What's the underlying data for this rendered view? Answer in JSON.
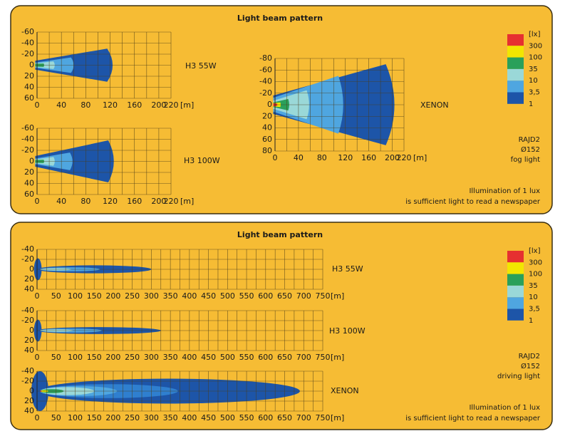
{
  "panels": [
    {
      "title": "Light beam pattern",
      "plots": [
        {
          "label": "H3 55W",
          "xticks": [
            0,
            40,
            80,
            120,
            160,
            200,
            220
          ],
          "unit": "[m]",
          "yticks": [
            -60,
            -40,
            -20,
            0,
            20,
            40,
            60
          ]
        },
        {
          "label": "H3 100W",
          "xticks": [
            0,
            40,
            80,
            120,
            160,
            200,
            220
          ],
          "unit": "[m]",
          "yticks": [
            -60,
            -40,
            -20,
            0,
            20,
            40,
            60
          ]
        },
        {
          "label": "XENON",
          "xticks": [
            0,
            40,
            80,
            120,
            160,
            200,
            220
          ],
          "unit": "[m]",
          "yticks": [
            -80,
            -60,
            -40,
            -20,
            0,
            20,
            40,
            60,
            80
          ]
        }
      ],
      "legend": {
        "unit": "[lx]",
        "levels": [
          "300",
          "100",
          "35",
          "10",
          "3,5",
          "1"
        ]
      },
      "specs": [
        "RAJD2",
        "Ø152",
        "fog light"
      ],
      "note": [
        "Illumination of 1 lux",
        "is sufficient light to read a newspaper"
      ]
    },
    {
      "title": "Light beam pattern",
      "plots": [
        {
          "label": "H3 55W",
          "xticks": [
            0,
            50,
            100,
            150,
            200,
            250,
            300,
            350,
            400,
            450,
            500,
            550,
            600,
            650,
            700,
            750
          ],
          "unit": "[m]",
          "yticks": [
            -40,
            -20,
            0,
            20,
            40
          ]
        },
        {
          "label": "H3 100W",
          "xticks": [
            0,
            50,
            100,
            150,
            200,
            250,
            300,
            350,
            400,
            450,
            500,
            550,
            600,
            650,
            700,
            750
          ],
          "unit": "[m]",
          "yticks": [
            -40,
            -20,
            0,
            20,
            40
          ]
        },
        {
          "label": "XENON",
          "xticks": [
            0,
            50,
            100,
            150,
            200,
            250,
            300,
            350,
            400,
            450,
            500,
            550,
            600,
            650,
            700,
            750
          ],
          "unit": "[m]",
          "yticks": [
            -40,
            -20,
            0,
            20,
            40
          ]
        }
      ],
      "legend": {
        "unit": "[lx]",
        "levels": [
          "300",
          "100",
          "35",
          "10",
          "3,5",
          "1"
        ]
      },
      "specs": [
        "RAJD2",
        "Ø152",
        "driving light"
      ],
      "note": [
        "Illumination of 1 lux",
        "is sufficient light to read a newspaper"
      ]
    }
  ]
}
